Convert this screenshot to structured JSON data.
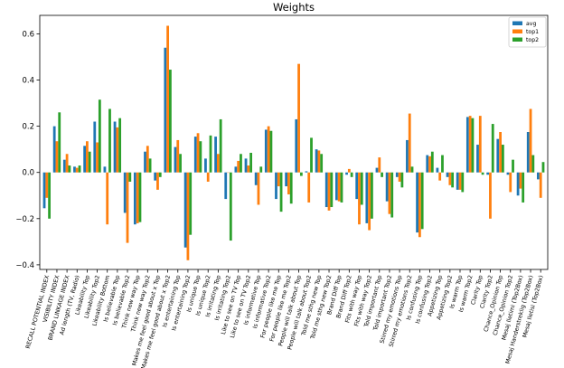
{
  "chart_data": {
    "type": "bar",
    "title": "Weights",
    "xlabel": "",
    "ylabel": "",
    "ylim": [
      -0.42,
      0.68
    ],
    "yticks": [
      -0.4,
      -0.2,
      0.0,
      0.2,
      0.4,
      0.6
    ],
    "ytick_labels": [
      "−0.4",
      "−0.2",
      "0.0",
      "0.2",
      "0.4",
      "0.6"
    ],
    "legend_position": "top-right",
    "grid": false,
    "categories": [
      "RECALL POTENTIAL INDEX",
      "VISIBILITY INDEX",
      "BRAND LINKAGE INDEX",
      "Ad length (TV, Radio)",
      "Likeability Top",
      "Likeability Top2",
      "Likeability Bottom",
      "Is believable Top",
      "Is believable Top2",
      "Think new way Top",
      "Think new way Top2",
      "Makes me feel good about x Top",
      "Makes me feel good about x Top2",
      "Is entertaining Top",
      "Is entertaining Top2",
      "Is unique Top",
      "Is unique Top2",
      "Is irritating Top",
      "Is irritating Top2",
      "Like to see on TV Top",
      "Like to see on TV Top2",
      "Is informative Top",
      "Is informative Top2",
      "For people like me Top",
      "For people like me Top2",
      "People will talk about Top",
      "People will talk about Top2",
      "Told me sthg new Top",
      "Told me sthg new Top2",
      "Brand Diff Top",
      "Brand Diff Top2",
      "Fits with way Top",
      "Fits with way Top2",
      "Told important Top",
      "Told important Top2",
      "Stirred my emotions Top",
      "Stirred my emotions Top2",
      "Is confusing Top",
      "Is confusing Top2",
      "Appetizing Top",
      "Appetizing Top2",
      "Is warm Top",
      "Is warm Top2",
      "Clarity Top",
      "Clarity Top2",
      "Chance_Opinion Top",
      "Chance_Opinion Top2",
      "Mesaj Iletimi (Top2Box)",
      "Mesaj Handerstreklig (Top2Box)",
      "Mesaj Iletisi (Top2Box)"
    ],
    "series": [
      {
        "name": "avg",
        "color": "#1f77b4",
        "values": [
          -0.155,
          0.2,
          0.055,
          0.025,
          0.115,
          0.22,
          0.025,
          0.22,
          -0.175,
          -0.225,
          0.09,
          -0.035,
          0.54,
          0.11,
          -0.325,
          0.155,
          0.06,
          0.155,
          -0.115,
          0.025,
          0.06,
          -0.055,
          0.185,
          -0.115,
          -0.06,
          0.23,
          0.005,
          0.1,
          -0.15,
          -0.12,
          -0.01,
          -0.115,
          -0.22,
          0.02,
          -0.125,
          -0.02,
          0.14,
          -0.26,
          0.075,
          0.02,
          -0.02,
          -0.075,
          0.24,
          0.12,
          -0.01,
          0.145,
          -0.01,
          -0.1,
          0.175,
          -0.03
        ]
      },
      {
        "name": "top1",
        "color": "#ff7f0e",
        "values": [
          -0.11,
          0.135,
          0.08,
          0.02,
          0.135,
          0.13,
          -0.225,
          0.195,
          -0.305,
          -0.22,
          0.115,
          -0.075,
          0.635,
          0.14,
          -0.38,
          0.17,
          -0.04,
          0.08,
          0.0,
          0.05,
          0.03,
          -0.14,
          0.2,
          -0.06,
          -0.095,
          0.47,
          -0.13,
          0.095,
          -0.165,
          -0.125,
          0.015,
          -0.225,
          -0.25,
          0.065,
          -0.18,
          -0.04,
          0.255,
          -0.28,
          0.07,
          -0.035,
          -0.055,
          -0.075,
          0.245,
          0.245,
          -0.2,
          0.175,
          -0.085,
          -0.07,
          0.275,
          -0.11
        ]
      },
      {
        "name": "top2",
        "color": "#2ca02c",
        "values": [
          -0.2,
          0.26,
          0.03,
          0.03,
          0.09,
          0.315,
          0.275,
          0.235,
          -0.04,
          -0.215,
          0.06,
          -0.02,
          0.445,
          0.08,
          -0.27,
          0.135,
          0.16,
          0.23,
          -0.295,
          0.08,
          0.085,
          0.025,
          0.18,
          -0.17,
          -0.135,
          -0.015,
          0.15,
          0.08,
          -0.15,
          -0.13,
          -0.02,
          -0.14,
          -0.2,
          -0.02,
          -0.195,
          -0.065,
          0.025,
          -0.245,
          0.09,
          0.075,
          -0.065,
          -0.085,
          0.235,
          -0.01,
          0.21,
          0.12,
          0.055,
          -0.13,
          0.075,
          0.045
        ]
      }
    ]
  }
}
